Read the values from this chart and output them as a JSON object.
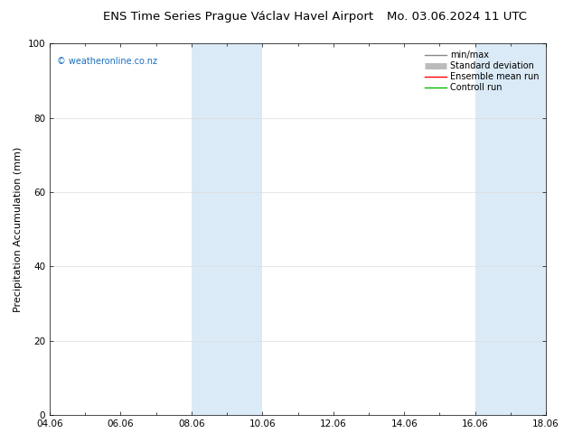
{
  "title_left": "ENS Time Series Prague Václav Havel Airport",
  "title_right": "Mo. 03.06.2024 11 UTC",
  "ylabel": "Precipitation Accumulation (mm)",
  "ylim": [
    0,
    100
  ],
  "yticks": [
    0,
    20,
    40,
    60,
    80,
    100
  ],
  "xtick_labels": [
    "04.06",
    "06.06",
    "08.06",
    "10.06",
    "12.06",
    "14.06",
    "16.06",
    "18.06"
  ],
  "xtick_positions": [
    0,
    2,
    4,
    6,
    8,
    10,
    12,
    14
  ],
  "xlim": [
    0,
    14
  ],
  "shaded_bands": [
    {
      "x_start": 4.0,
      "x_end": 6.0,
      "color": "#daeaf7"
    },
    {
      "x_start": 12.0,
      "x_end": 14.0,
      "color": "#daeaf7"
    }
  ],
  "watermark": "© weatheronline.co.nz",
  "watermark_color": "#1a6ec0",
  "legend_entries": [
    {
      "label": "min/max",
      "color": "#888888",
      "linewidth": 1.0
    },
    {
      "label": "Standard deviation",
      "color": "#bbbbbb",
      "linewidth": 5
    },
    {
      "label": "Ensemble mean run",
      "color": "#ff0000",
      "linewidth": 1.0
    },
    {
      "label": "Controll run",
      "color": "#00bb00",
      "linewidth": 1.0
    }
  ],
  "background_color": "#ffffff",
  "plot_bg_color": "#ffffff",
  "grid_color": "#dddddd",
  "title_fontsize": 9.5,
  "ylabel_fontsize": 8,
  "tick_fontsize": 7.5,
  "watermark_fontsize": 7,
  "legend_fontsize": 7
}
